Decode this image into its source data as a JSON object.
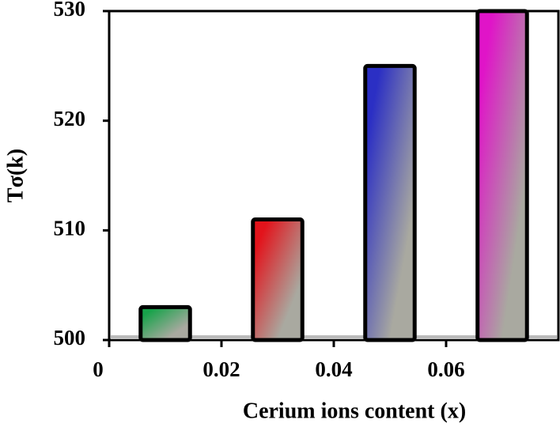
{
  "chart_data": {
    "type": "bar",
    "x_label": "Cerium ions content (x)",
    "y_label": "Tσ(k)",
    "x": [
      0.01,
      0.03,
      0.05,
      0.07
    ],
    "values": [
      503,
      511,
      525,
      530
    ],
    "colors": [
      "#17a34a",
      "#e3131b",
      "#2b2fc4",
      "#e014c8"
    ],
    "xlim": [
      0,
      0.08
    ],
    "xticks": [
      0,
      0.02,
      0.04,
      0.06
    ],
    "ylim": [
      500,
      530
    ],
    "yticks": [
      500,
      510,
      520,
      530
    ]
  }
}
